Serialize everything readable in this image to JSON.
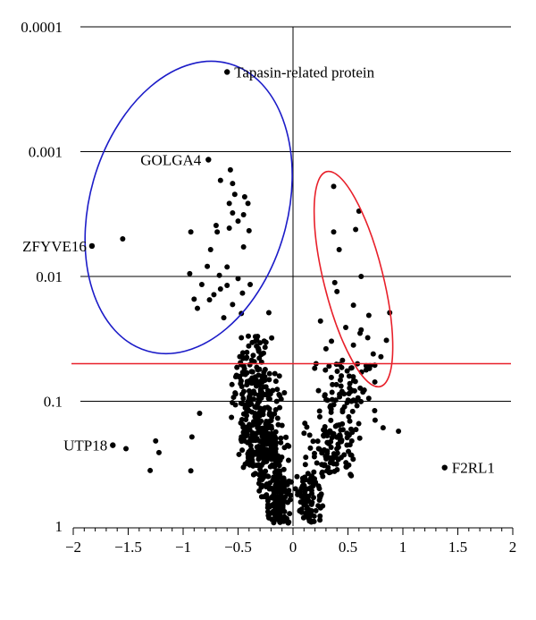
{
  "colors": {
    "points": "#000000",
    "grid": "#000000",
    "threshold_line": "#e8202a",
    "left_ellipse": "#1c1cc8",
    "right_ellipse": "#e8202a"
  },
  "chart_data": {
    "type": "scatter",
    "title": "",
    "xlabel": "",
    "ylabel": "",
    "x_scale": "linear",
    "y_scale": "log",
    "y_inverted": true,
    "xlim": [
      -2,
      2
    ],
    "ylim": [
      1,
      0.0001
    ],
    "x_ticks": [
      -2,
      -1.5,
      -1,
      -0.5,
      0,
      0.5,
      1,
      1.5,
      2
    ],
    "x_tick_labels": [
      "−2",
      "−1.5",
      "−1",
      "−0.5",
      "0",
      "0.5",
      "1",
      "1.5",
      "2"
    ],
    "y_ticks": [
      0.0001,
      0.001,
      0.01,
      0.1,
      1
    ],
    "y_tick_labels": [
      "0.0001",
      "0.001",
      "0.01",
      "0.1",
      "1"
    ],
    "grid": "horizontal",
    "threshold_p": 0.05,
    "labeled_points": [
      {
        "label": "Tapasin-related protein",
        "x": -0.6,
        "y": 0.00023
      },
      {
        "label": "GOLGA4",
        "x": -0.77,
        "y": 0.00116
      },
      {
        "label": "ZFYVE16",
        "x": -1.83,
        "y": 0.0057
      },
      {
        "label": "UTP18",
        "x": -1.64,
        "y": 0.225
      },
      {
        "label": "F2RL1",
        "x": 1.38,
        "y": 0.34
      }
    ],
    "highlight_regions": [
      {
        "cx": -0.95,
        "cy": 0.0028,
        "rx": 0.9,
        "y_top": 0.00021,
        "y_bottom": 0.052,
        "rotation_deg": 16
      },
      {
        "cx": 0.55,
        "cy": 0.0105,
        "rx": 0.27,
        "y_top": 0.00089,
        "y_bottom": 0.053,
        "rotation_deg": -14
      }
    ],
    "points": [
      [
        -0.57,
        0.0014
      ],
      [
        -0.66,
        0.0017
      ],
      [
        -0.55,
        0.0018
      ],
      [
        -0.53,
        0.0022
      ],
      [
        -0.44,
        0.0023
      ],
      [
        -0.58,
        0.0026
      ],
      [
        -0.41,
        0.0026
      ],
      [
        -0.45,
        0.0032
      ],
      [
        -0.55,
        0.0031
      ],
      [
        -0.7,
        0.0039
      ],
      [
        -0.58,
        0.0041
      ],
      [
        -0.69,
        0.0044
      ],
      [
        -0.5,
        0.0036
      ],
      [
        -0.4,
        0.0043
      ],
      [
        -0.93,
        0.0044
      ],
      [
        -1.55,
        0.005
      ],
      [
        -0.45,
        0.0058
      ],
      [
        -0.75,
        0.0061
      ],
      [
        -0.94,
        0.0095
      ],
      [
        -0.78,
        0.0083
      ],
      [
        -0.67,
        0.0098
      ],
      [
        -0.5,
        0.0104
      ],
      [
        -0.6,
        0.0118
      ],
      [
        -0.83,
        0.0116
      ],
      [
        -0.66,
        0.0126
      ],
      [
        -0.72,
        0.014
      ],
      [
        -0.76,
        0.0154
      ],
      [
        -0.55,
        0.0168
      ],
      [
        -0.87,
        0.018
      ],
      [
        -0.47,
        0.0198
      ],
      [
        -0.63,
        0.0214
      ],
      [
        -0.22,
        0.0195
      ],
      [
        -0.9,
        0.0152
      ],
      [
        -0.6,
        0.0084
      ],
      [
        -0.39,
        0.0116
      ],
      [
        -0.46,
        0.0136
      ],
      [
        0.37,
        0.0019
      ],
      [
        0.6,
        0.003
      ],
      [
        0.37,
        0.0044
      ],
      [
        0.57,
        0.0042
      ],
      [
        0.42,
        0.0061
      ],
      [
        0.62,
        0.01
      ],
      [
        0.38,
        0.0112
      ],
      [
        0.88,
        0.0195
      ],
      [
        0.55,
        0.017
      ],
      [
        0.4,
        0.0132
      ],
      [
        0.69,
        0.0205
      ],
      [
        0.25,
        0.0228
      ],
      [
        0.62,
        0.0268
      ],
      [
        0.48,
        0.0256
      ],
      [
        0.68,
        0.031
      ],
      [
        0.85,
        0.0325
      ],
      [
        0.73,
        0.0418
      ],
      [
        0.55,
        0.0355
      ],
      [
        0.35,
        0.033
      ],
      [
        0.3,
        0.038
      ],
      [
        0.8,
        0.044
      ],
      [
        0.45,
        0.047
      ],
      [
        0.21,
        0.05
      ],
      [
        0.61,
        0.0285
      ],
      [
        0.96,
        0.174
      ],
      [
        0.82,
        0.163
      ],
      [
        -0.92,
        0.193
      ],
      [
        -0.85,
        0.125
      ],
      [
        -1.25,
        0.208
      ],
      [
        -1.52,
        0.24
      ],
      [
        -1.22,
        0.258
      ],
      [
        -1.3,
        0.359
      ],
      [
        -0.93,
        0.361
      ],
      [
        -0.47,
        0.031
      ],
      [
        -0.3,
        0.034
      ]
    ],
    "cloud": [
      {
        "y_range": [
          0.03,
          0.06
        ],
        "x_left": -0.55,
        "x_right": -0.15,
        "n": 45
      },
      {
        "y_range": [
          0.06,
          0.15
        ],
        "x_left": -0.58,
        "x_right": -0.05,
        "n": 140
      },
      {
        "y_range": [
          0.15,
          0.4
        ],
        "x_left": -0.56,
        "x_right": -0.02,
        "n": 210
      },
      {
        "y_range": [
          0.4,
          0.95
        ],
        "x_left": -0.4,
        "x_right": 0.0,
        "n": 150
      },
      {
        "y_range": [
          0.05,
          0.15
        ],
        "x_left": 0.12,
        "x_right": 0.78,
        "n": 75
      },
      {
        "y_range": [
          0.15,
          0.4
        ],
        "x_left": 0.06,
        "x_right": 0.7,
        "n": 110
      },
      {
        "y_range": [
          0.4,
          0.95
        ],
        "x_left": 0.0,
        "x_right": 0.4,
        "n": 85
      }
    ]
  }
}
